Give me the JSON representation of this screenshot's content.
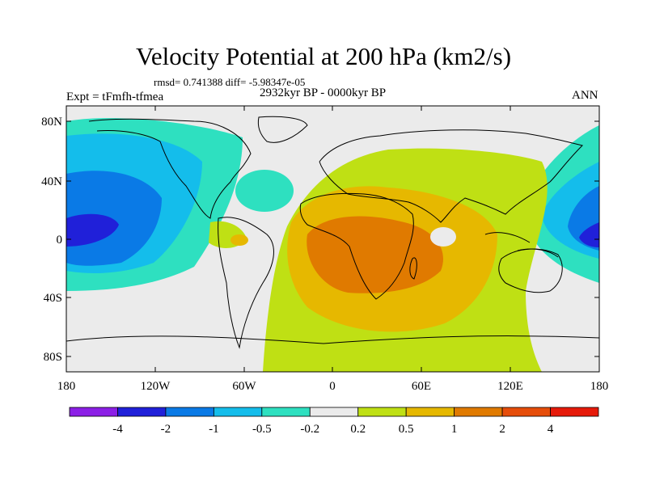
{
  "header": {
    "title": "Velocity Potential at 200 hPa (km2/s)",
    "stats": "rmsd= 0.741388  diff= -5.98347e-05",
    "experiment": "Expt = tFmfh-tfmea",
    "period": "2932kyr BP - 0000kyr BP",
    "season": "ANN"
  },
  "axes": {
    "lat_labels": [
      "80N",
      "40N",
      "0",
      "40S",
      "80S"
    ],
    "lon_labels": [
      "180",
      "120W",
      "60W",
      "0",
      "60E",
      "120E",
      "180"
    ]
  },
  "colorbar": {
    "labels": [
      "-4",
      "-2",
      "-1",
      "-0.5",
      "-0.2",
      "0.2",
      "0.5",
      "1",
      "2",
      "4"
    ],
    "colors": [
      "#8c1fe6",
      "#2020d9",
      "#0a7ae6",
      "#14bdeb",
      "#2ee0c0",
      "#ebebeb",
      "#bfe014",
      "#e6b800",
      "#e07a00",
      "#e64d0a",
      "#e61a0a"
    ]
  },
  "colors": {
    "neutral": "#ebebeb",
    "coast": "#000000"
  }
}
